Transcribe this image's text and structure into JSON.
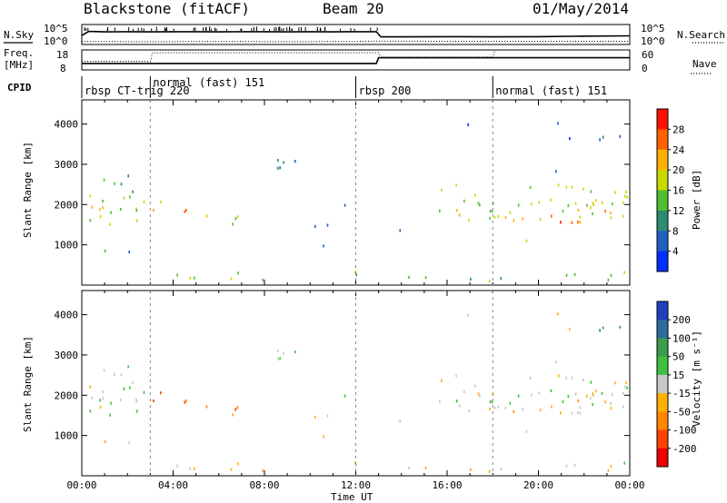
{
  "header": {
    "station": "Blackstone (fitACF)",
    "beam": "Beam 20",
    "date": "01/May/2014"
  },
  "side_labels": {
    "nsky": "N.Sky",
    "freq_line1": "Freq.",
    "freq_line2": "[MHz]",
    "cpid": "CPID",
    "nsearch": "N.Search",
    "nave": "Nave"
  },
  "chart_data": [
    {
      "type": "line",
      "panel": "noise",
      "x_range_hours": [
        0,
        24
      ],
      "left_ticks": [
        "10^5",
        "10^0"
      ],
      "right_ticks": [
        "10^5",
        "10^0"
      ],
      "series": [
        {
          "name": "N.Sky",
          "style": "solid",
          "x": [
            0,
            0.3,
            0.5,
            1,
            2,
            3,
            4,
            5,
            6,
            7,
            8,
            9,
            10,
            11,
            12,
            12.9,
            13.1,
            14,
            16,
            18,
            20,
            22,
            24
          ],
          "y_frac": [
            0.55,
            0.35,
            0.35,
            0.37,
            0.36,
            0.37,
            0.36,
            0.36,
            0.37,
            0.36,
            0.36,
            0.37,
            0.36,
            0.37,
            0.36,
            0.36,
            0.62,
            0.62,
            0.61,
            0.62,
            0.61,
            0.58,
            0.57
          ]
        },
        {
          "name": "N.Search",
          "style": "dotted",
          "x": [
            0,
            3,
            6,
            9,
            12,
            13,
            16,
            20,
            24
          ],
          "y_frac": [
            0.85,
            0.86,
            0.85,
            0.86,
            0.85,
            0.83,
            0.84,
            0.84,
            0.84
          ]
        }
      ]
    },
    {
      "type": "line",
      "panel": "frequency",
      "x_range_hours": [
        0,
        24
      ],
      "left_ticks": [
        "18",
        "8"
      ],
      "right_ticks": [
        "60",
        "0"
      ],
      "series": [
        {
          "name": "Freq.",
          "style": "solid",
          "x": [
            0,
            12.9,
            13.0,
            24
          ],
          "y": [
            10.5,
            10.5,
            14.5,
            14.5
          ]
        },
        {
          "name": "Nave",
          "style": "dotted",
          "x": [
            0,
            3,
            3.1,
            13,
            13.1,
            18,
            18.1,
            24
          ],
          "y": [
            12,
            12,
            18,
            18,
            15,
            15,
            20,
            20
          ]
        }
      ]
    },
    {
      "type": "table",
      "panel": "cpid",
      "segments": [
        {
          "start": 0,
          "end": 3,
          "label": "rbsp CT-trig 220"
        },
        {
          "start": 3,
          "end": 12,
          "label": "normal (fast) 151"
        },
        {
          "start": 12,
          "end": 18,
          "label": "rbsp 200"
        },
        {
          "start": 18,
          "end": 24,
          "label": "normal (fast) 151"
        }
      ]
    },
    {
      "type": "heatmap",
      "panel": "power",
      "ylabel": "Slant Range [km]",
      "x_range_hours": [
        0,
        24
      ],
      "y_range_km": [
        0,
        4600
      ],
      "y_ticks": [
        "1000",
        "2000",
        "3000",
        "4000"
      ],
      "colorbar_label": "Power [dB]",
      "colorbar_ticks": [
        "4",
        "8",
        "12",
        "16",
        "20",
        "24",
        "28"
      ],
      "colors": [
        "#0030ff",
        "#2060c0",
        "#2c8c70",
        "#50c030",
        "#c8d800",
        "#ffb000",
        "#ff6000",
        "#ff1000"
      ]
    },
    {
      "type": "heatmap",
      "panel": "velocity",
      "ylabel": "Slant Range [km]",
      "xlabel": "Time UT",
      "x_range_hours": [
        0,
        24
      ],
      "y_range_km": [
        0,
        4600
      ],
      "y_ticks": [
        "1000",
        "2000",
        "3000",
        "4000"
      ],
      "x_ticks": [
        "00:00",
        "04:00",
        "08:00",
        "12:00",
        "16:00",
        "20:00",
        "00:00"
      ],
      "colorbar_label": "Velocity [m s⁻¹]",
      "colorbar_ticks": [
        "200",
        "100",
        "50",
        "15",
        "-15",
        "-50",
        "-100",
        "-200"
      ],
      "colors": [
        "#2040c0",
        "#2c6ea0",
        "#3c9c50",
        "#40c040",
        "#c8c8c8",
        "#ffb000",
        "#ff8800",
        "#ff4000",
        "#ee0000"
      ]
    }
  ],
  "scatter_bands": [
    {
      "t0": 0.0,
      "t1": 3.5,
      "r0": 1500,
      "r1": 2300,
      "power": 0.55,
      "vel": 0.45,
      "density": 0.75
    },
    {
      "t0": 0.2,
      "t1": 2.8,
      "r0": 2300,
      "r1": 2900,
      "power": 0.35,
      "vel": 0.5,
      "density": 0.4
    },
    {
      "t0": 3.0,
      "t1": 5.5,
      "r0": 1700,
      "r1": 2100,
      "power": 0.7,
      "vel": 0.8,
      "density": 0.6
    },
    {
      "t0": 5.5,
      "t1": 7.3,
      "r0": 1200,
      "r1": 1700,
      "power": 0.45,
      "vel": 0.75,
      "density": 0.45
    },
    {
      "t0": 0.5,
      "t1": 2.2,
      "r0": 600,
      "r1": 900,
      "power": 0.3,
      "vel": 0.5,
      "density": 0.5
    },
    {
      "t0": 8.0,
      "t1": 10.5,
      "r0": 2100,
      "r1": 3200,
      "power": 0.2,
      "vel": 0.5,
      "density": 0.15
    },
    {
      "t0": 7.5,
      "t1": 9.0,
      "r0": 2800,
      "r1": 3300,
      "power": 0.25,
      "vel": 0.45,
      "density": 0.3
    },
    {
      "t0": 10.0,
      "t1": 13.0,
      "r0": 900,
      "r1": 2600,
      "power": 0.15,
      "vel": 0.5,
      "density": 0.1
    },
    {
      "t0": 15.5,
      "t1": 24.0,
      "r0": 1600,
      "r1": 2500,
      "power": 0.55,
      "vel": 0.5,
      "density": 0.85
    },
    {
      "t0": 18.5,
      "t1": 24.0,
      "r0": 1550,
      "r1": 1900,
      "power": 0.8,
      "vel": 0.6,
      "density": 0.6
    },
    {
      "t0": 13.5,
      "t1": 19.0,
      "r0": 1200,
      "r1": 1400,
      "power": 0.15,
      "vel": 0.5,
      "density": 0.15
    },
    {
      "t0": 19.2,
      "t1": 20.0,
      "r0": 900,
      "r1": 1150,
      "power": 0.4,
      "vel": 0.5,
      "density": 0.6
    },
    {
      "t0": 21.0,
      "t1": 24.0,
      "r0": 3600,
      "r1": 4000,
      "power": 0.2,
      "vel": 0.2,
      "density": 0.35
    },
    {
      "t0": 16.0,
      "t1": 22.0,
      "r0": 2600,
      "r1": 4300,
      "power": 0.15,
      "vel": 0.5,
      "density": 0.05
    },
    {
      "t0": 0.0,
      "t1": 24.0,
      "r0": 100,
      "r1": 320,
      "power": 0.4,
      "vel": 0.55,
      "density": 0.45
    }
  ]
}
